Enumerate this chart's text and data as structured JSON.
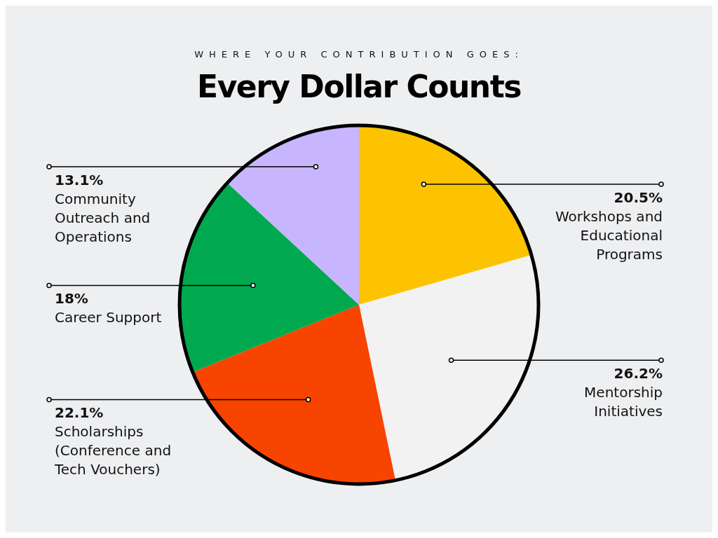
{
  "chart_data": {
    "type": "pie",
    "subtitle": "WHERE YOUR CONTRIBUTION GOES:",
    "title": "Every Dollar Counts",
    "categories": [
      "Workshops and Educational Programs",
      "Mentorship Initiatives",
      "Scholarships (Conference and Tech Vouchers)",
      "Career Support",
      "Community Outreach and Operations"
    ],
    "values": [
      20.5,
      26.2,
      22.1,
      18,
      13.1
    ],
    "value_labels": [
      "20.5%",
      "26.2%",
      "22.1%",
      "18%",
      "13.1%"
    ],
    "colors": [
      "#fdc300",
      "#f2f2f2",
      "#f74400",
      "#00a94f",
      "#c7b6ff"
    ],
    "legend": false
  }
}
